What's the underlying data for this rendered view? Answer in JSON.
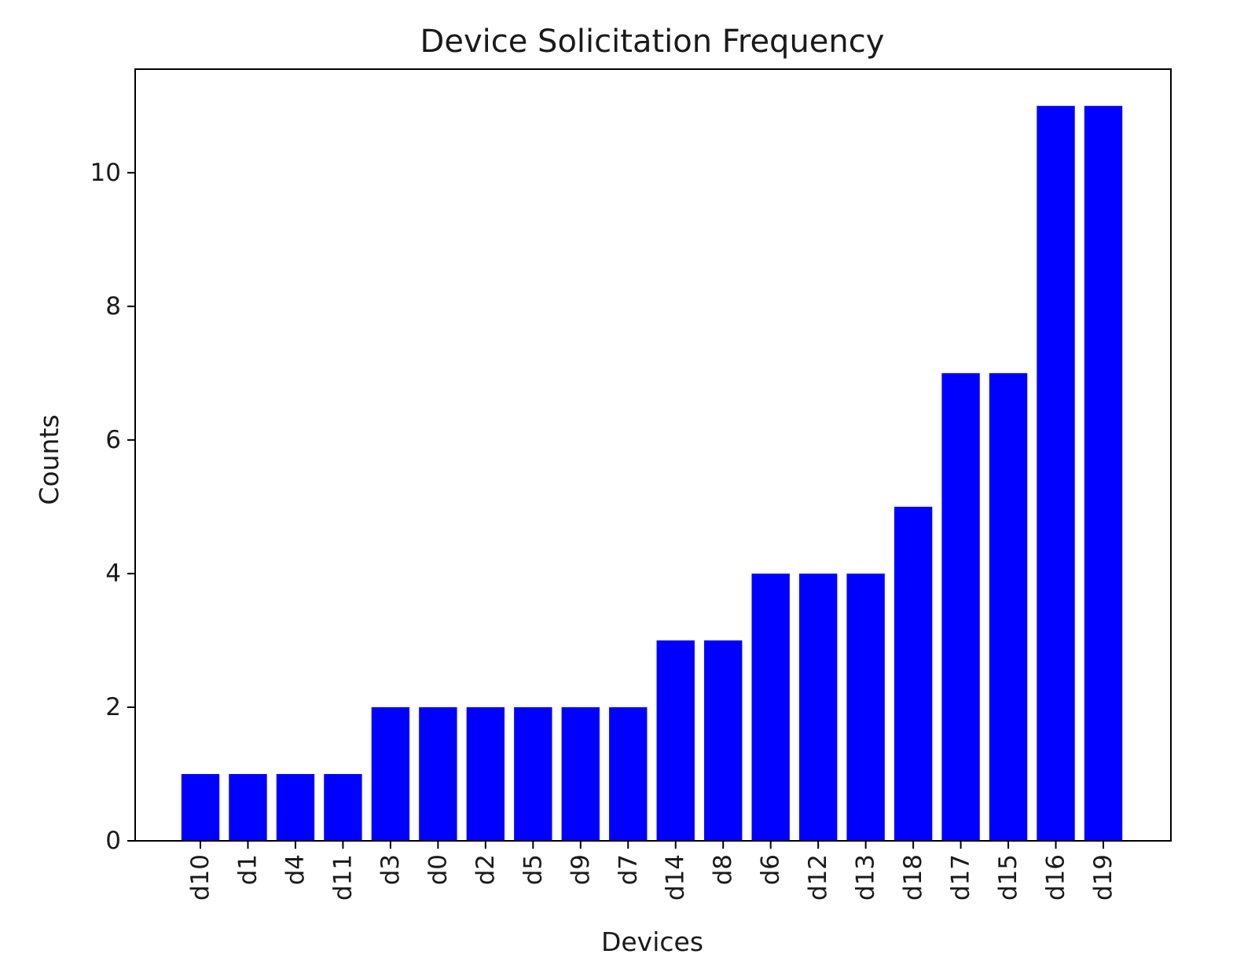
{
  "chart_data": {
    "type": "bar",
    "title": "Device Solicitation Frequency",
    "xlabel": "Devices",
    "ylabel": "Counts",
    "categories": [
      "d10",
      "d1",
      "d4",
      "d11",
      "d3",
      "d0",
      "d2",
      "d5",
      "d9",
      "d7",
      "d14",
      "d8",
      "d6",
      "d12",
      "d13",
      "d18",
      "d17",
      "d15",
      "d16",
      "d19"
    ],
    "values": [
      1,
      1,
      1,
      1,
      2,
      2,
      2,
      2,
      2,
      2,
      3,
      3,
      4,
      4,
      4,
      5,
      7,
      7,
      11,
      11
    ],
    "ylim": [
      0,
      11.55
    ],
    "yticks": [
      0,
      2,
      4,
      6,
      8,
      10
    ],
    "bar_color": "#0000ff",
    "grid": false,
    "legend": "none"
  }
}
